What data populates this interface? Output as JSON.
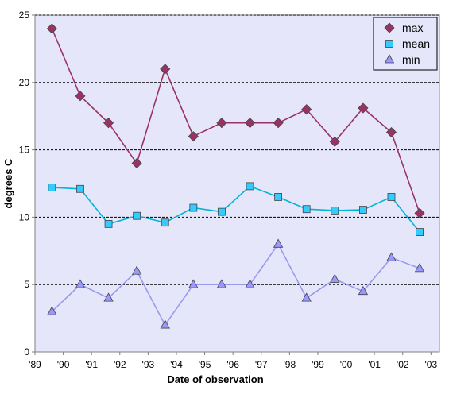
{
  "chart_data": {
    "type": "line",
    "title": "",
    "xlabel": "Date of observation",
    "ylabel": "degrees C",
    "xtick_labels": [
      "'89",
      "'90",
      "'91",
      "'92",
      "'93",
      "'94",
      "'95",
      "'96",
      "'97",
      "'98",
      "'99",
      "'00",
      "'01",
      "'02",
      "'03"
    ],
    "ytick_labels": [
      "0",
      "5",
      "10",
      "15",
      "20",
      "25"
    ],
    "ylim": [
      0,
      25
    ],
    "grid": "horizontal dashed",
    "legend_position": "top-right",
    "series": [
      {
        "name": "max",
        "marker": "diamond",
        "color": "#993366",
        "fill": "#993366",
        "x": [
          1989.6,
          1990.6,
          1991.6,
          1992.6,
          1993.6,
          1994.6,
          1995.6,
          1996.6,
          1997.6,
          1998.6,
          1999.6,
          2000.6,
          2001.6,
          2002.6
        ],
        "values": [
          24,
          19,
          17,
          14,
          21,
          16,
          17,
          17,
          17,
          18,
          15.6,
          18.1,
          16.3,
          10.3
        ]
      },
      {
        "name": "mean",
        "marker": "square",
        "color": "#00b4d8",
        "fill": "#33ccff",
        "x": [
          1989.6,
          1990.6,
          1991.6,
          1992.6,
          1993.6,
          1994.6,
          1995.6,
          1996.6,
          1997.6,
          1998.6,
          1999.6,
          2000.6,
          2001.6,
          2002.6
        ],
        "values": [
          12.2,
          12.1,
          9.5,
          10.1,
          9.6,
          10.7,
          10.4,
          12.3,
          11.5,
          10.6,
          10.5,
          10.55,
          11.5,
          8.9
        ]
      },
      {
        "name": "min",
        "marker": "triangle",
        "color": "#9999ee",
        "fill": "#9999ff",
        "x": [
          1989.6,
          1990.6,
          1991.6,
          1992.6,
          1993.6,
          1994.6,
          1995.6,
          1996.6,
          1997.6,
          1998.6,
          1999.6,
          2000.6,
          2001.6,
          2002.6
        ],
        "values": [
          3,
          5,
          4,
          6,
          2,
          5,
          5,
          5,
          8,
          4,
          5.4,
          4.5,
          7,
          6.2
        ]
      }
    ],
    "colors": {
      "plot_background": "#e6e6fa",
      "gridline": "#000000",
      "axis": "#808080"
    }
  }
}
